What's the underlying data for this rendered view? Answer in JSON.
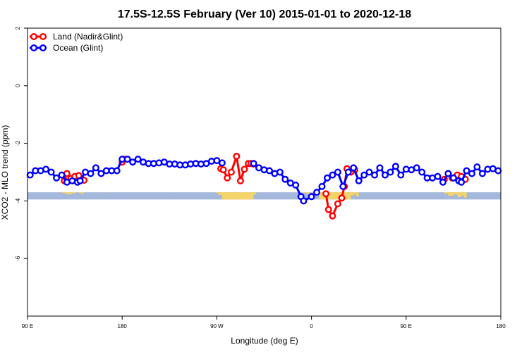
{
  "chart_data": {
    "type": "line",
    "title": "17.5S-12.5S February (Ver 10)   2015-01-01 to 2020-12-18",
    "xlabel": "Longitude (deg E)",
    "ylabel": "XCO2 - MLO trend (ppm)",
    "xlim": [
      90,
      450
    ],
    "ylim": [
      -8,
      2
    ],
    "x_ticks": [
      {
        "value": 90,
        "label": "90 E"
      },
      {
        "value": 162,
        "label": "180"
      },
      {
        "value": 234,
        "label": "90 W"
      },
      {
        "value": 306,
        "label": "0"
      },
      {
        "value": 378,
        "label": "90 E"
      },
      {
        "value": 450,
        "label": "180"
      }
    ],
    "y_ticks": [
      {
        "value": 2,
        "label": "2"
      },
      {
        "value": 0,
        "label": "0"
      },
      {
        "value": -2,
        "label": "-2"
      },
      {
        "value": -4,
        "label": "-4"
      },
      {
        "value": -6,
        "label": "-6"
      }
    ],
    "legend_position": "top-left",
    "grid": false,
    "series": [
      {
        "name": "Land (Nadir&Glint)",
        "color": "#ff0000",
        "segments": [
          [
            [
              118,
              -3.3
            ],
            [
              120,
              -3.05
            ],
            [
              123,
              -3.22
            ],
            [
              126,
              -3.15
            ],
            [
              129,
              -3.12
            ],
            [
              133,
              -3.28
            ]
          ],
          [
            [
              162,
              -2.65
            ],
            [
              164,
              -2.55
            ]
          ],
          [
            [
              237,
              -2.88
            ],
            [
              239,
              -2.92
            ],
            [
              242,
              -3.2
            ],
            [
              245,
              -3.0
            ],
            [
              249,
              -2.45
            ],
            [
              252,
              -3.3
            ],
            [
              255,
              -2.9
            ],
            [
              258,
              -2.7
            ],
            [
              260,
              -2.7
            ],
            [
              262,
              -2.72
            ]
          ],
          [
            [
              317,
              -3.75
            ],
            [
              319,
              -4.3
            ],
            [
              322,
              -4.52
            ],
            [
              326,
              -4.1
            ],
            [
              329,
              -3.9
            ],
            [
              331,
              -3.5
            ],
            [
              333,
              -2.88
            ],
            [
              336,
              -3.0
            ],
            [
              339,
              -2.92
            ]
          ],
          [
            [
              407,
              -3.25
            ],
            [
              410,
              -3.05
            ],
            [
              413,
              -3.2
            ],
            [
              417,
              -3.1
            ],
            [
              420,
              -3.15
            ],
            [
              423,
              -3.25
            ]
          ]
        ]
      },
      {
        "name": "Ocean (Glint)",
        "color": "#0000ff",
        "segments": [
          [
            [
              92,
              -3.1
            ],
            [
              96,
              -2.95
            ],
            [
              100,
              -2.95
            ],
            [
              104,
              -2.9
            ],
            [
              108,
              -3.0
            ],
            [
              112,
              -3.2
            ],
            [
              116,
              -3.1
            ],
            [
              120,
              -3.35
            ],
            [
              124,
              -3.3
            ],
            [
              128,
              -3.35
            ],
            [
              130,
              -3.3
            ],
            [
              134,
              -3.0
            ],
            [
              138,
              -3.05
            ],
            [
              142,
              -2.85
            ],
            [
              146,
              -3.05
            ],
            [
              150,
              -2.95
            ],
            [
              154,
              -2.95
            ],
            [
              158,
              -2.95
            ],
            [
              162,
              -2.55
            ],
            [
              166,
              -2.55
            ],
            [
              170,
              -2.65
            ],
            [
              174,
              -2.55
            ],
            [
              178,
              -2.65
            ],
            [
              182,
              -2.7
            ],
            [
              186,
              -2.7
            ],
            [
              190,
              -2.68
            ],
            [
              194,
              -2.65
            ],
            [
              198,
              -2.72
            ],
            [
              202,
              -2.72
            ],
            [
              206,
              -2.75
            ],
            [
              210,
              -2.75
            ],
            [
              214,
              -2.72
            ],
            [
              218,
              -2.7
            ],
            [
              222,
              -2.72
            ],
            [
              226,
              -2.7
            ],
            [
              230,
              -2.62
            ],
            [
              234,
              -2.6
            ],
            [
              238,
              -2.68
            ]
          ],
          [
            [
              262,
              -2.7
            ],
            [
              266,
              -2.85
            ],
            [
              270,
              -2.92
            ],
            [
              274,
              -2.95
            ],
            [
              278,
              -3.05
            ],
            [
              282,
              -3.0
            ],
            [
              286,
              -3.25
            ],
            [
              290,
              -3.38
            ],
            [
              294,
              -3.45
            ],
            [
              298,
              -3.85
            ],
            [
              300,
              -4.0
            ],
            [
              306,
              -3.85
            ],
            [
              310,
              -3.7
            ],
            [
              314,
              -3.5
            ],
            [
              318,
              -3.2
            ],
            [
              322,
              -3.1
            ],
            [
              326,
              -3.0
            ],
            [
              330,
              -3.5
            ],
            [
              334,
              -3.0
            ],
            [
              338,
              -2.85
            ],
            [
              342,
              -3.3
            ],
            [
              346,
              -3.1
            ],
            [
              350,
              -3.0
            ],
            [
              354,
              -3.1
            ],
            [
              358,
              -2.85
            ],
            [
              362,
              -3.1
            ],
            [
              366,
              -3.0
            ],
            [
              370,
              -2.8
            ],
            [
              374,
              -3.1
            ],
            [
              378,
              -2.9
            ],
            [
              382,
              -2.92
            ],
            [
              386,
              -2.85
            ],
            [
              390,
              -3.0
            ],
            [
              394,
              -3.2
            ],
            [
              398,
              -3.2
            ],
            [
              402,
              -3.15
            ],
            [
              406,
              -3.35
            ],
            [
              410,
              -3.05
            ],
            [
              414,
              -3.2
            ],
            [
              418,
              -3.3
            ],
            [
              420,
              -3.35
            ],
            [
              424,
              -2.95
            ],
            [
              428,
              -3.05
            ],
            [
              432,
              -2.82
            ],
            [
              436,
              -3.05
            ],
            [
              440,
              -2.9
            ],
            [
              444,
              -2.88
            ],
            [
              448,
              -2.95
            ]
          ]
        ]
      }
    ],
    "surface_strip": {
      "y_top": -3.7,
      "y_bottom": -3.95,
      "ocean_color": "#a4b8dc",
      "land_color": "#f5d36b",
      "land_ranges": [
        [
          116,
          119,
          0.1
        ],
        [
          119,
          124,
          0.25
        ],
        [
          124,
          127,
          0.12
        ],
        [
          129,
          131,
          0.15
        ],
        [
          131,
          132.5,
          0.25
        ],
        [
          153,
          154,
          0.05
        ],
        [
          199,
          200,
          0.05
        ],
        [
          233,
          235,
          0.1
        ],
        [
          235,
          238,
          0.35
        ],
        [
          238,
          262,
          1.0
        ],
        [
          262,
          264,
          0.3
        ],
        [
          299,
          303,
          0.1
        ],
        [
          303,
          305,
          0.2
        ],
        [
          312,
          336,
          1.0
        ],
        [
          336,
          338,
          0.45
        ],
        [
          338,
          340,
          0.3
        ],
        [
          340,
          342,
          0.55
        ],
        [
          407,
          410,
          0.2
        ],
        [
          410,
          414,
          0.5
        ],
        [
          414,
          417,
          0.3
        ],
        [
          417,
          420,
          0.65
        ],
        [
          420,
          422,
          0.45
        ],
        [
          422,
          424,
          0.75
        ]
      ]
    }
  }
}
